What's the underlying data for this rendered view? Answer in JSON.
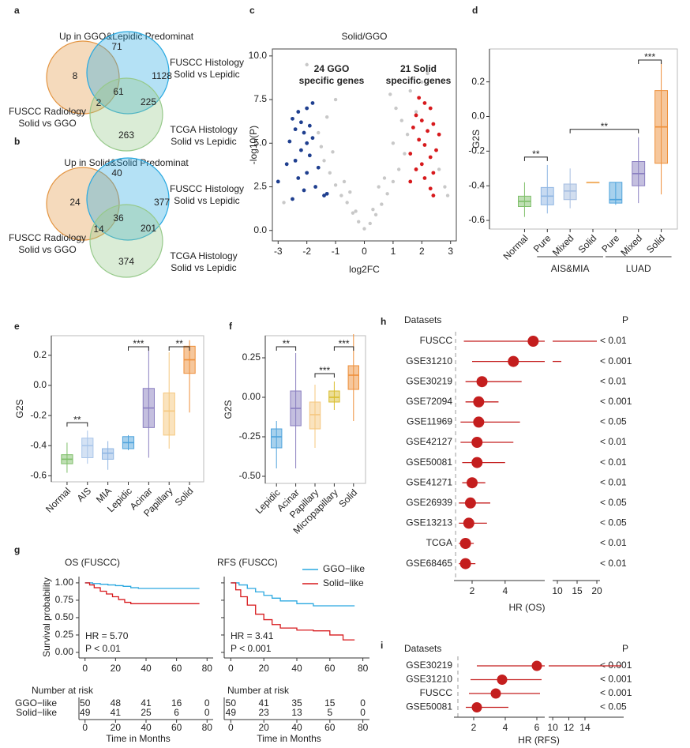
{
  "chart_data": [
    {
      "type": "venn",
      "label": "a",
      "title": "Up in GGO&Lepidic Predominat",
      "sets": [
        {
          "name_lines": [
            "FUSCC Radiology",
            "Solid vs GGO"
          ],
          "color": "#e39440"
        },
        {
          "name_lines": [
            "FUSCC Histology",
            "Solid vs Lepidic"
          ],
          "color": "#29a9e1"
        },
        {
          "name_lines": [
            "TCGA Histology",
            "Solid vs Lepidic"
          ],
          "color": "#96c98a"
        }
      ],
      "regions": [
        8,
        71,
        1128,
        2,
        61,
        225,
        263
      ]
    },
    {
      "type": "venn",
      "label": "b",
      "title": "Up in Solid&Solid Predominat",
      "sets": [
        {
          "name_lines": [
            "FUSCC Radiology",
            "Solid vs GGO"
          ],
          "color": "#e39440"
        },
        {
          "name_lines": [
            "FUSCC Histology",
            "Solid vs Lepidic"
          ],
          "color": "#29a9e1"
        },
        {
          "name_lines": [
            "TCGA Histology",
            "Solid vs Lepidic"
          ],
          "color": "#96c98a"
        }
      ],
      "regions": [
        24,
        40,
        377,
        14,
        36,
        201,
        374
      ]
    },
    {
      "type": "scatter",
      "label": "c",
      "title": "Solid/GGO",
      "xlabel": "log2FC",
      "ylabel": "-log10(P)",
      "xlim": [
        -3.2,
        3.2
      ],
      "ylim": [
        -0.6,
        10.4
      ],
      "xticks": [
        -3,
        -2,
        -1,
        0,
        1,
        2,
        3
      ],
      "yticks": [
        {
          "value": 0,
          "label": "0.0"
        },
        2.5,
        {
          "value": 5,
          "label": "5.0"
        },
        7.5,
        {
          "value": 10,
          "label": "10.0"
        }
      ],
      "series": [
        {
          "color": "#c8c8c8",
          "x": [
            0,
            0.2,
            -0.2,
            0.4,
            -0.4,
            0.6,
            -0.6,
            0.8,
            -0.8,
            1.0,
            -1.0,
            1.2,
            -1.2,
            1.4,
            -1.4,
            1.5,
            -1.5,
            1.3,
            -1.6,
            1.1,
            -1.3,
            1.6,
            0.9,
            -1.0,
            2.6,
            2.8,
            2.2,
            -2.0,
            0.3,
            -0.3,
            0.7,
            -0.7,
            1.8,
            0.5,
            -0.5,
            1.0,
            -1.1,
            2.0,
            2.9,
            -2.8
          ],
          "y": [
            0.1,
            0.4,
            0.5,
            0.9,
            1.0,
            1.5,
            1.6,
            2.1,
            2.0,
            2.8,
            2.6,
            3.5,
            3.3,
            4.4,
            4.0,
            5.5,
            4.8,
            6.3,
            5.6,
            7.0,
            6.5,
            8.0,
            7.8,
            7.5,
            3.5,
            2.5,
            9.0,
            9.5,
            1.2,
            1.1,
            3.0,
            2.8,
            6.8,
            2.5,
            2.2,
            5.0,
            4.5,
            8.5,
            2.0,
            1.6
          ]
        },
        {
          "color": "#1f3f8f",
          "x": [
            -1.8,
            -2.0,
            -2.3,
            -2.5,
            -2.2,
            -1.9,
            -2.4,
            -2.1,
            -1.8,
            -2.6,
            -2.0,
            -2.2,
            -1.9,
            -2.4,
            -2.7,
            -1.6,
            -2.0,
            -2.3,
            -3.0,
            -1.7,
            -2.1,
            -1.4,
            -2.5,
            -1.3
          ],
          "y": [
            7.3,
            7.0,
            6.8,
            6.4,
            6.2,
            6.0,
            5.8,
            5.6,
            5.3,
            5.1,
            5.0,
            4.6,
            4.3,
            4.0,
            3.8,
            3.6,
            3.3,
            3.0,
            2.8,
            2.5,
            2.3,
            2.0,
            1.8,
            2.1
          ]
        },
        {
          "color": "#d7191c",
          "x": [
            1.9,
            2.1,
            2.3,
            1.8,
            2.0,
            2.4,
            1.7,
            2.2,
            2.6,
            1.9,
            2.1,
            2.5,
            1.6,
            2.3,
            2.0,
            1.8,
            2.4,
            2.1,
            1.6,
            2.3,
            2.4
          ],
          "y": [
            7.6,
            7.3,
            7.0,
            6.6,
            6.3,
            6.1,
            5.9,
            5.7,
            5.5,
            5.2,
            4.9,
            4.6,
            4.4,
            4.2,
            3.8,
            3.5,
            3.3,
            3.0,
            2.8,
            2.4,
            2.0
          ]
        }
      ],
      "annotations": [
        {
          "lines": [
            "24 GGO",
            "specific genes"
          ],
          "color": "#2b3a8f"
        },
        {
          "lines": [
            "21 Solid",
            "specific genes"
          ],
          "color": "#d7191c"
        }
      ]
    },
    {
      "type": "box",
      "label": "d",
      "ylabel": "G2S",
      "ylim": [
        -0.65,
        0.39
      ],
      "yticks": [
        -0.6,
        -0.4,
        -0.2,
        {
          "value": 0,
          "label": "0.0"
        },
        0.2
      ],
      "categories": [
        "Normal",
        "Pure",
        "Mixed",
        "Solid",
        "Pure",
        "Mixed",
        "Solid"
      ],
      "boxes": [
        {
          "lo": -0.58,
          "q1": -0.52,
          "median": -0.49,
          "q3": -0.46,
          "hi": -0.38,
          "color": "#7fbf6a"
        },
        {
          "lo": -0.56,
          "q1": -0.51,
          "median": -0.46,
          "q3": -0.41,
          "hi": -0.28,
          "color": "#8fb6e3"
        },
        {
          "lo": -0.53,
          "q1": -0.48,
          "median": -0.43,
          "q3": -0.39,
          "hi": -0.3,
          "color": "#a5bde0"
        },
        {
          "lo": -0.38,
          "q1": -0.38,
          "median": -0.38,
          "q3": -0.38,
          "hi": -0.38,
          "color": "#f2b36b"
        },
        {
          "lo": -0.51,
          "q1": -0.5,
          "median": -0.48,
          "q3": -0.38,
          "hi": -0.38,
          "color": "#4fa3dc"
        },
        {
          "lo": -0.5,
          "q1": -0.4,
          "median": -0.33,
          "q3": -0.26,
          "hi": -0.12,
          "color": "#8a7fc0"
        },
        {
          "lo": -0.45,
          "q1": -0.27,
          "median": -0.06,
          "q3": 0.15,
          "hi": 0.32,
          "color": "#ee8f3a"
        }
      ],
      "groups": [
        {
          "name": "AIS&MIA",
          "from": 1,
          "to": 3
        },
        {
          "name": "LUAD",
          "from": 4,
          "to": 6
        }
      ],
      "significance": [
        {
          "label": "**",
          "between": [
            0,
            1
          ]
        },
        {
          "label": "**",
          "between": [
            2,
            5
          ]
        },
        {
          "label": "***",
          "between": [
            5,
            6
          ]
        }
      ]
    },
    {
      "type": "box",
      "label": "e",
      "ylabel": "G2S",
      "ylim": [
        -0.64,
        0.33
      ],
      "yticks": [
        -0.6,
        -0.4,
        -0.2,
        {
          "value": 0,
          "label": "0.0"
        },
        0.2
      ],
      "categories": [
        "Normal",
        "AIS",
        "MIA",
        "Lepidic",
        "Acinar",
        "Papillary",
        "Solid"
      ],
      "boxes": [
        {
          "lo": -0.58,
          "q1": -0.52,
          "median": -0.49,
          "q3": -0.46,
          "hi": -0.38,
          "color": "#7fbf6a"
        },
        {
          "lo": -0.52,
          "q1": -0.48,
          "median": -0.4,
          "q3": -0.35,
          "hi": -0.3,
          "color": "#a9c6ea"
        },
        {
          "lo": -0.56,
          "q1": -0.49,
          "median": -0.45,
          "q3": -0.42,
          "hi": -0.37,
          "color": "#8fb6e3"
        },
        {
          "lo": -0.43,
          "q1": -0.42,
          "median": -0.38,
          "q3": -0.34,
          "hi": -0.33,
          "color": "#4fa3dc"
        },
        {
          "lo": -0.48,
          "q1": -0.28,
          "median": -0.15,
          "q3": -0.02,
          "hi": 0.26,
          "color": "#8a7fc0"
        },
        {
          "lo": -0.42,
          "q1": -0.33,
          "median": -0.17,
          "q3": -0.05,
          "hi": 0.22,
          "color": "#f5c77e"
        },
        {
          "lo": -0.18,
          "q1": 0.08,
          "median": 0.17,
          "q3": 0.26,
          "hi": 0.3,
          "color": "#ee8f3a"
        }
      ],
      "significance": [
        {
          "label": "**",
          "between": [
            0,
            1
          ]
        },
        {
          "label": "***",
          "between": [
            3,
            4
          ]
        },
        {
          "label": "**",
          "between": [
            5,
            6
          ]
        }
      ]
    },
    {
      "type": "box",
      "label": "f",
      "ylabel": "G2S",
      "ylim": [
        -0.545,
        0.39
      ],
      "yticks": [
        {
          "value": -0.5,
          "label": "-0.50"
        },
        -0.25,
        {
          "value": 0,
          "label": "0.00"
        },
        0.25
      ],
      "categories": [
        "Lepidic",
        "Acinar",
        "Papillary",
        "Micropapillary",
        "Solid"
      ],
      "boxes": [
        {
          "lo": -0.45,
          "q1": -0.32,
          "median": -0.25,
          "q3": -0.2,
          "hi": -0.15,
          "color": "#4fa3dc"
        },
        {
          "lo": -0.45,
          "q1": -0.18,
          "median": -0.07,
          "q3": 0.04,
          "hi": 0.28,
          "color": "#8a7fc0"
        },
        {
          "lo": -0.32,
          "q1": -0.2,
          "median": -0.11,
          "q3": -0.03,
          "hi": 0.08,
          "color": "#f5c77e"
        },
        {
          "lo": -0.08,
          "q1": -0.03,
          "median": 0.0,
          "q3": 0.04,
          "hi": 0.1,
          "color": "#d9bd2e"
        },
        {
          "lo": -0.15,
          "q1": 0.05,
          "median": 0.14,
          "q3": 0.2,
          "hi": 0.4,
          "color": "#ee8f3a"
        }
      ],
      "significance": [
        {
          "label": "**",
          "between": [
            0,
            1
          ]
        },
        {
          "label": "***",
          "between": [
            2,
            3
          ]
        },
        {
          "label": "***",
          "between": [
            3,
            4
          ]
        }
      ]
    },
    {
      "type": "km",
      "label": "g",
      "title": "OS (FUSCC)",
      "ylabel": "Survival probability",
      "xlabel": "Time in Months",
      "xlim": [
        -4,
        84
      ],
      "ylim": [
        -0.08,
        1.09
      ],
      "xticks": [
        0,
        20,
        40,
        60,
        80
      ],
      "yticks": [
        {
          "value": 0,
          "label": "0.00"
        },
        0.25,
        {
          "value": 0.5,
          "label": "0.50"
        },
        0.75,
        {
          "value": 1,
          "label": "1.00"
        }
      ],
      "hr_text": "HR = 5.70",
      "p_text": "P < 0.01",
      "risk_title": "Number at risk",
      "risk_labels": true,
      "series": [
        {
          "name": "GGO−like",
          "color": "#2aa8e0",
          "x": [
            0,
            5,
            10,
            15,
            20,
            25,
            30,
            35,
            40,
            75
          ],
          "y": [
            1,
            0.99,
            0.98,
            0.97,
            0.96,
            0.95,
            0.93,
            0.92,
            0.92,
            0.92
          ],
          "at_risk": [
            50,
            48,
            41,
            16,
            0
          ]
        },
        {
          "name": "Solid−like",
          "color": "#d7191c",
          "x": [
            0,
            3,
            6,
            10,
            14,
            18,
            22,
            26,
            30,
            75
          ],
          "y": [
            1,
            0.97,
            0.93,
            0.88,
            0.84,
            0.8,
            0.76,
            0.72,
            0.7,
            0.7
          ],
          "at_risk": [
            49,
            41,
            25,
            6,
            0
          ]
        }
      ]
    },
    {
      "type": "km",
      "title": "RFS (FUSCC)",
      "xlabel": "Time in Months",
      "xlim": [
        -4,
        84
      ],
      "ylim": [
        -0.08,
        1.09
      ],
      "xticks": [
        0,
        20,
        40,
        60,
        80
      ],
      "yticks": [
        {
          "value": 0,
          "label": "0.00"
        },
        0.25,
        {
          "value": 0.5,
          "label": "0.50"
        },
        0.75,
        {
          "value": 1,
          "label": "1.00"
        }
      ],
      "hr_text": "HR = 3.41",
      "p_text": "P < 0.001",
      "risk_title": "Number at risk",
      "legend": "upper right",
      "series": [
        {
          "name": "GGO−like",
          "color": "#2aa8e0",
          "x": [
            0,
            5,
            10,
            15,
            20,
            25,
            30,
            40,
            50,
            75
          ],
          "y": [
            1,
            0.97,
            0.92,
            0.87,
            0.82,
            0.78,
            0.74,
            0.7,
            0.67,
            0.67
          ],
          "at_risk": [
            50,
            41,
            35,
            15,
            0
          ]
        },
        {
          "name": "Solid−like",
          "color": "#d7191c",
          "x": [
            0,
            3,
            6,
            10,
            15,
            20,
            25,
            30,
            40,
            50,
            60,
            68,
            75
          ],
          "y": [
            1,
            0.9,
            0.8,
            0.68,
            0.55,
            0.47,
            0.4,
            0.35,
            0.32,
            0.31,
            0.25,
            0.18,
            0.18
          ],
          "at_risk": [
            49,
            23,
            13,
            5,
            0
          ]
        }
      ]
    },
    {
      "type": "forest",
      "label": "h",
      "headers": [
        "Datasets",
        "P"
      ],
      "xlabel": "HR (OS)",
      "color": "#c41e1e",
      "reference_line": 1,
      "xlim": [
        0.9,
        6.4
      ],
      "xticks": [
        2,
        4
      ],
      "x2lim": [
        8.8,
        20.8
      ],
      "x2ticks": [
        10,
        15,
        20
      ],
      "rows": [
        {
          "name": "FUSCC",
          "hr": 5.7,
          "lo": 1.5,
          "hi": 20,
          "p": "< 0.01"
        },
        {
          "name": "GSE31210",
          "hr": 4.5,
          "lo": 2.0,
          "hi": 11,
          "p": "< 0.001"
        },
        {
          "name": "GSE30219",
          "hr": 2.6,
          "lo": 1.6,
          "hi": 5.0,
          "p": "< 0.01"
        },
        {
          "name": "GSE72094",
          "hr": 2.4,
          "lo": 1.6,
          "hi": 3.6,
          "p": "< 0.001"
        },
        {
          "name": "GSE11969",
          "hr": 2.4,
          "lo": 1.3,
          "hi": 4.9,
          "p": "< 0.05"
        },
        {
          "name": "GSE42127",
          "hr": 2.3,
          "lo": 1.3,
          "hi": 4.5,
          "p": "< 0.01"
        },
        {
          "name": "GSE50081",
          "hr": 2.3,
          "lo": 1.4,
          "hi": 4.0,
          "p": "< 0.01"
        },
        {
          "name": "GSE41271",
          "hr": 2.0,
          "lo": 1.4,
          "hi": 2.8,
          "p": "< 0.01"
        },
        {
          "name": "GSE26939",
          "hr": 1.9,
          "lo": 1.2,
          "hi": 3.1,
          "p": "< 0.05"
        },
        {
          "name": "GSE13213",
          "hr": 1.8,
          "lo": 1.2,
          "hi": 2.9,
          "p": "< 0.05"
        },
        {
          "name": "TCGA",
          "hr": 1.6,
          "lo": 1.2,
          "hi": 2.1,
          "p": "< 0.01"
        },
        {
          "name": "GSE68465",
          "hr": 1.6,
          "lo": 1.2,
          "hi": 2.2,
          "p": "< 0.01"
        }
      ]
    },
    {
      "type": "forest",
      "label": "i",
      "headers": [
        "Datasets",
        "P"
      ],
      "xlabel": "HR (RFS)",
      "color": "#c41e1e",
      "reference_line": 1,
      "xlim": [
        0.75,
        6.5
      ],
      "xticks": [
        2,
        4,
        6
      ],
      "x2lim": [
        9.5,
        18.8
      ],
      "x2ticks": [
        10,
        12,
        14
      ],
      "rows": [
        {
          "name": "GSE30219",
          "hr": 6.0,
          "lo": 2.2,
          "hi": 18.5,
          "p": "< 0.001"
        },
        {
          "name": "GSE31210",
          "hr": 3.8,
          "lo": 1.8,
          "hi": 6.3,
          "p": "< 0.001"
        },
        {
          "name": "FUSCC",
          "hr": 3.4,
          "lo": 1.7,
          "hi": 6.2,
          "p": "< 0.001"
        },
        {
          "name": "GSE50081",
          "hr": 2.2,
          "lo": 1.5,
          "hi": 4.2,
          "p": "< 0.05"
        }
      ]
    }
  ]
}
